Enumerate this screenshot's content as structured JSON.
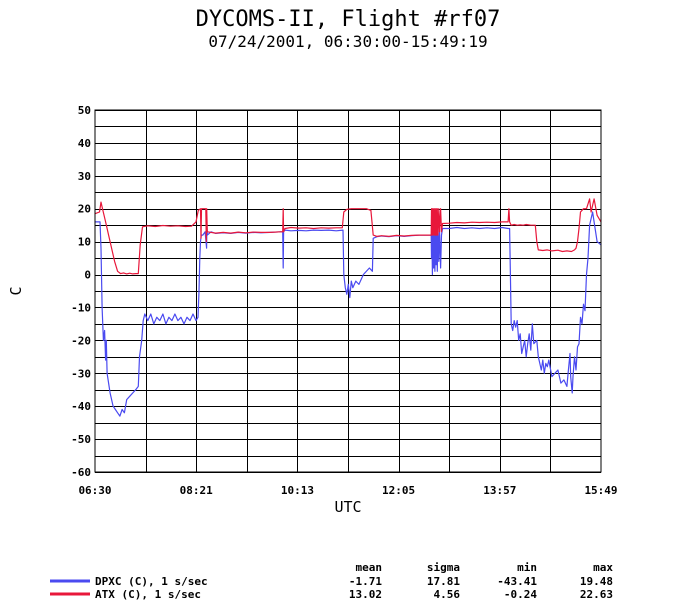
{
  "chart_data": {
    "type": "line",
    "title": "DYCOMS-II, Flight #rf07",
    "subtitle": "07/24/2001, 06:30:00-15:49:19",
    "xlabel": "UTC",
    "ylabel": "C",
    "xlim": [
      0,
      33559
    ],
    "ylim": [
      -60,
      50
    ],
    "yticks": [
      50,
      40,
      30,
      20,
      10,
      0,
      -10,
      -20,
      -30,
      -40,
      -50,
      -60
    ],
    "xticks": [
      {
        "t": 0,
        "label": "06:30"
      },
      {
        "t": 6711,
        "label": "08:21"
      },
      {
        "t": 13423,
        "label": "10:13"
      },
      {
        "t": 20135,
        "label": "12:05"
      },
      {
        "t": 26847,
        "label": "13:57"
      },
      {
        "t": 33559,
        "label": "15:49"
      }
    ],
    "xgrid_count": 10,
    "ygrid_step": 5,
    "grid": true,
    "stats_header": [
      "mean",
      "sigma",
      "min",
      "max"
    ],
    "series": [
      {
        "name": "DPXC (C), 1 s/sec",
        "color": "#4a4af0",
        "stats": [
          "-1.71",
          "17.81",
          "-43.41",
          "19.48"
        ],
        "points": [
          [
            0,
            16
          ],
          [
            330,
            16
          ],
          [
            400,
            8
          ],
          [
            470,
            -10
          ],
          [
            560,
            -20
          ],
          [
            640,
            -17
          ],
          [
            700,
            -26
          ],
          [
            750,
            -20
          ],
          [
            800,
            -30
          ],
          [
            900,
            -33
          ],
          [
            1000,
            -36
          ],
          [
            1100,
            -38
          ],
          [
            1200,
            -40
          ],
          [
            1350,
            -41
          ],
          [
            1500,
            -42
          ],
          [
            1650,
            -43
          ],
          [
            1800,
            -41
          ],
          [
            1950,
            -42
          ],
          [
            2100,
            -38
          ],
          [
            2300,
            -37
          ],
          [
            2500,
            -36
          ],
          [
            2700,
            -35
          ],
          [
            2870,
            -34
          ],
          [
            2950,
            -25
          ],
          [
            3100,
            -20
          ],
          [
            3200,
            -14
          ],
          [
            3300,
            -12
          ],
          [
            3500,
            -14
          ],
          [
            3700,
            -12
          ],
          [
            3900,
            -15
          ],
          [
            4100,
            -13
          ],
          [
            4300,
            -14
          ],
          [
            4500,
            -12
          ],
          [
            4700,
            -15
          ],
          [
            4900,
            -13
          ],
          [
            5100,
            -14
          ],
          [
            5300,
            -12
          ],
          [
            5500,
            -14
          ],
          [
            5700,
            -13
          ],
          [
            5900,
            -15
          ],
          [
            6100,
            -13
          ],
          [
            6300,
            -14
          ],
          [
            6500,
            -12
          ],
          [
            6700,
            -14
          ],
          [
            6830,
            -13
          ],
          [
            6900,
            -5
          ],
          [
            6950,
            5
          ],
          [
            7000,
            10
          ],
          [
            7050,
            12
          ],
          [
            7150,
            12
          ],
          [
            7300,
            13
          ],
          [
            7400,
            8
          ],
          [
            7420,
            15
          ],
          [
            7450,
            12
          ],
          [
            7700,
            13
          ],
          [
            8000,
            12.5
          ],
          [
            8500,
            12.7
          ],
          [
            9000,
            12.5
          ],
          [
            9500,
            12.8
          ],
          [
            10000,
            12.6
          ],
          [
            10500,
            12.8
          ],
          [
            11000,
            12.7
          ],
          [
            11600,
            12.8
          ],
          [
            12300,
            13
          ],
          [
            12450,
            13
          ],
          [
            12480,
            2
          ],
          [
            12510,
            13
          ],
          [
            12600,
            13.5
          ],
          [
            13000,
            13.3
          ],
          [
            13500,
            13.4
          ],
          [
            14000,
            13.3
          ],
          [
            14500,
            13.5
          ],
          [
            15000,
            13.4
          ],
          [
            15500,
            13.5
          ],
          [
            16000,
            13.3
          ],
          [
            16450,
            13.5
          ],
          [
            16500,
            0
          ],
          [
            16600,
            -4
          ],
          [
            16700,
            -6
          ],
          [
            16800,
            -3
          ],
          [
            16900,
            -7
          ],
          [
            17000,
            -2
          ],
          [
            17100,
            -4
          ],
          [
            17300,
            -2
          ],
          [
            17500,
            -3
          ],
          [
            17800,
            0
          ],
          [
            18200,
            2
          ],
          [
            18400,
            1
          ],
          [
            18450,
            11
          ],
          [
            18700,
            11.5
          ],
          [
            19000,
            11.7
          ],
          [
            19500,
            11.5
          ],
          [
            20000,
            11.8
          ],
          [
            20500,
            11.6
          ],
          [
            21000,
            11.8
          ],
          [
            21500,
            12
          ],
          [
            22000,
            12
          ],
          [
            22300,
            12
          ],
          [
            22320,
            5
          ],
          [
            22340,
            15
          ],
          [
            22380,
            0
          ],
          [
            22420,
            14
          ],
          [
            22460,
            2
          ],
          [
            22500,
            15
          ],
          [
            22540,
            1
          ],
          [
            22580,
            14
          ],
          [
            22620,
            3
          ],
          [
            22660,
            15
          ],
          [
            22700,
            1
          ],
          [
            22740,
            14
          ],
          [
            22800,
            4
          ],
          [
            22850,
            14
          ],
          [
            22920,
            2
          ],
          [
            22980,
            12
          ],
          [
            23050,
            14
          ],
          [
            23500,
            14
          ],
          [
            24000,
            14.3
          ],
          [
            24500,
            14
          ],
          [
            25000,
            14.2
          ],
          [
            25500,
            14
          ],
          [
            26000,
            14.2
          ],
          [
            26500,
            14
          ],
          [
            27000,
            14.3
          ],
          [
            27400,
            14
          ],
          [
            27500,
            14
          ],
          [
            27550,
            0
          ],
          [
            27600,
            -15
          ],
          [
            27700,
            -17
          ],
          [
            27800,
            -14
          ],
          [
            27900,
            -16
          ],
          [
            28000,
            -14
          ],
          [
            28100,
            -20
          ],
          [
            28200,
            -18
          ],
          [
            28300,
            -24
          ],
          [
            28400,
            -22
          ],
          [
            28500,
            -20
          ],
          [
            28600,
            -25
          ],
          [
            28700,
            -21
          ],
          [
            28800,
            -18
          ],
          [
            28900,
            -23
          ],
          [
            29000,
            -15
          ],
          [
            29100,
            -21
          ],
          [
            29300,
            -20
          ],
          [
            29400,
            -25
          ],
          [
            29500,
            -27
          ],
          [
            29600,
            -29
          ],
          [
            29700,
            -26
          ],
          [
            29800,
            -30
          ],
          [
            29900,
            -27
          ],
          [
            30000,
            -28
          ],
          [
            30100,
            -26
          ],
          [
            30300,
            -31
          ],
          [
            30500,
            -30
          ],
          [
            30700,
            -29
          ],
          [
            30900,
            -33
          ],
          [
            31100,
            -32
          ],
          [
            31300,
            -34
          ],
          [
            31400,
            -29
          ],
          [
            31500,
            -24
          ],
          [
            31550,
            -31
          ],
          [
            31650,
            -36
          ],
          [
            31700,
            -31
          ],
          [
            31800,
            -25
          ],
          [
            31900,
            -29
          ],
          [
            32000,
            -22
          ],
          [
            32100,
            -21
          ],
          [
            32200,
            -13
          ],
          [
            32300,
            -15
          ],
          [
            32400,
            -9
          ],
          [
            32500,
            -11
          ],
          [
            32600,
            0
          ],
          [
            32700,
            5
          ],
          [
            32800,
            15
          ],
          [
            32900,
            17
          ],
          [
            33000,
            19
          ],
          [
            33100,
            16
          ],
          [
            33300,
            10
          ],
          [
            33559,
            9
          ]
        ]
      },
      {
        "name": "ATX (C), 1 s/sec",
        "color": "#e8173a",
        "stats": [
          "13.02",
          "4.56",
          "-0.24",
          "22.63"
        ],
        "points": [
          [
            0,
            18.5
          ],
          [
            300,
            19
          ],
          [
            400,
            22
          ],
          [
            500,
            20
          ],
          [
            700,
            16
          ],
          [
            900,
            12
          ],
          [
            1100,
            8
          ],
          [
            1300,
            4
          ],
          [
            1500,
            1
          ],
          [
            1700,
            0.3
          ],
          [
            1900,
            0.5
          ],
          [
            2100,
            0.2
          ],
          [
            2300,
            0.4
          ],
          [
            2500,
            0.2
          ],
          [
            2700,
            0.3
          ],
          [
            2870,
            0.3
          ],
          [
            3000,
            9
          ],
          [
            3150,
            14.5
          ],
          [
            3500,
            14.8
          ],
          [
            4000,
            14.6
          ],
          [
            4500,
            14.9
          ],
          [
            5000,
            14.7
          ],
          [
            5500,
            14.8
          ],
          [
            6000,
            14.6
          ],
          [
            6400,
            14.7
          ],
          [
            6700,
            16
          ],
          [
            6850,
            19.5
          ],
          [
            7000,
            20
          ],
          [
            7030,
            11
          ],
          [
            7060,
            20
          ],
          [
            7350,
            20
          ],
          [
            7380,
            10
          ],
          [
            7410,
            20
          ],
          [
            7450,
            13
          ],
          [
            8000,
            12.6
          ],
          [
            8500,
            12.8
          ],
          [
            9000,
            12.6
          ],
          [
            9500,
            12.9
          ],
          [
            10000,
            12.7
          ],
          [
            10500,
            12.9
          ],
          [
            11000,
            12.8
          ],
          [
            11600,
            12.8
          ],
          [
            12300,
            13
          ],
          [
            12450,
            13
          ],
          [
            12480,
            20
          ],
          [
            12510,
            13
          ],
          [
            12600,
            14
          ],
          [
            13000,
            14.3
          ],
          [
            13500,
            14.1
          ],
          [
            14000,
            14.2
          ],
          [
            14500,
            14
          ],
          [
            15000,
            14.2
          ],
          [
            15500,
            14.1
          ],
          [
            16000,
            14.2
          ],
          [
            16400,
            14.2
          ],
          [
            16500,
            19
          ],
          [
            16700,
            19.8
          ],
          [
            17000,
            20
          ],
          [
            17500,
            20
          ],
          [
            18000,
            20
          ],
          [
            18300,
            19.5
          ],
          [
            18450,
            12
          ],
          [
            18700,
            11.6
          ],
          [
            19000,
            11.8
          ],
          [
            19500,
            11.6
          ],
          [
            20000,
            11.9
          ],
          [
            20500,
            11.7
          ],
          [
            21000,
            11.9
          ],
          [
            21500,
            12
          ],
          [
            22000,
            12
          ],
          [
            22300,
            12
          ],
          [
            22320,
            20
          ],
          [
            22340,
            12
          ],
          [
            22380,
            20
          ],
          [
            22420,
            12
          ],
          [
            22460,
            20
          ],
          [
            22500,
            12
          ],
          [
            22540,
            20
          ],
          [
            22580,
            12
          ],
          [
            22620,
            20
          ],
          [
            22660,
            12
          ],
          [
            22700,
            20
          ],
          [
            22740,
            12
          ],
          [
            22800,
            20
          ],
          [
            22850,
            13
          ],
          [
            22920,
            20
          ],
          [
            22980,
            13
          ],
          [
            23050,
            15.5
          ],
          [
            23500,
            15.6
          ],
          [
            24000,
            15.8
          ],
          [
            24500,
            15.7
          ],
          [
            25000,
            15.9
          ],
          [
            25500,
            15.8
          ],
          [
            26000,
            15.9
          ],
          [
            26500,
            15.8
          ],
          [
            27000,
            16
          ],
          [
            27400,
            16
          ],
          [
            27450,
            20
          ],
          [
            27500,
            16
          ],
          [
            27600,
            15
          ],
          [
            27800,
            15.2
          ],
          [
            28000,
            15
          ],
          [
            28200,
            15.1
          ],
          [
            28400,
            15
          ],
          [
            28600,
            15.2
          ],
          [
            28900,
            15
          ],
          [
            29200,
            15
          ],
          [
            29300,
            10
          ],
          [
            29400,
            7.5
          ],
          [
            29700,
            7.3
          ],
          [
            30000,
            7.5
          ],
          [
            30300,
            7.2
          ],
          [
            30700,
            7.4
          ],
          [
            31000,
            7
          ],
          [
            31300,
            7.2
          ],
          [
            31600,
            7
          ],
          [
            31800,
            7.5
          ],
          [
            31900,
            8
          ],
          [
            32000,
            10
          ],
          [
            32100,
            14
          ],
          [
            32200,
            19
          ],
          [
            32400,
            20
          ],
          [
            32600,
            20
          ],
          [
            32800,
            23
          ],
          [
            32900,
            19
          ],
          [
            33000,
            21
          ],
          [
            33100,
            23
          ],
          [
            33300,
            18
          ],
          [
            33559,
            16
          ]
        ]
      }
    ]
  }
}
